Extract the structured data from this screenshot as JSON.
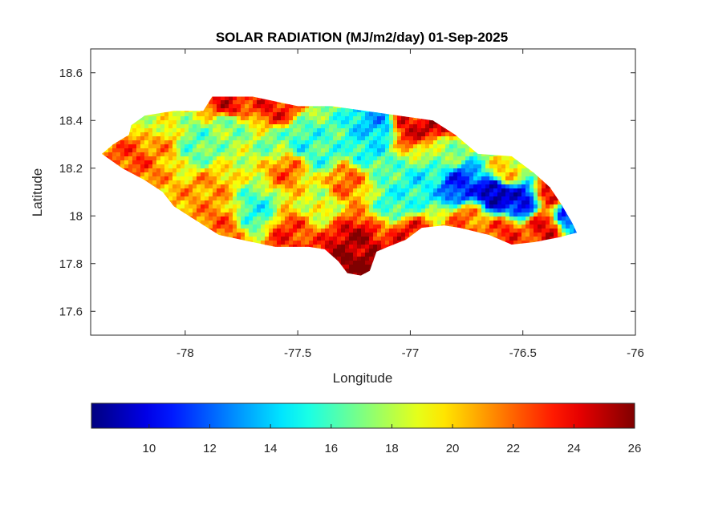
{
  "chart_data": {
    "type": "heatmap",
    "title": "SOLAR RADIATION (MJ/m2/day) 01-Sep-2025",
    "xlabel": "Longitude",
    "ylabel": "Latitude",
    "xlim": [
      -78.42,
      -76.0
    ],
    "ylim": [
      17.5,
      18.7
    ],
    "x_ticks": [
      -78,
      -77.5,
      -77,
      -76.5,
      -76
    ],
    "x_tick_labels": [
      "-78",
      "-77.5",
      "-77",
      "-76.5",
      "-76"
    ],
    "y_ticks": [
      17.6,
      17.8,
      18,
      18.2,
      18.4,
      18.6
    ],
    "y_tick_labels": [
      "17.6",
      "17.8",
      "18",
      "18.2",
      "18.4",
      "18.6"
    ],
    "colormap": "jet",
    "color_range": [
      8.1,
      26
    ],
    "colorbar_ticks": [
      10,
      12,
      14,
      16,
      18,
      20,
      22,
      24,
      26
    ],
    "colorbar_tick_labels": [
      "10",
      "12",
      "14",
      "16",
      "18",
      "20",
      "22",
      "24",
      "26"
    ],
    "colorbar_position": "bottom",
    "grid": false,
    "region_outline": [
      [
        -78.37,
        18.26
      ],
      [
        -78.32,
        18.3
      ],
      [
        -78.25,
        18.34
      ],
      [
        -78.24,
        18.38
      ],
      [
        -78.18,
        18.42
      ],
      [
        -78.05,
        18.44
      ],
      [
        -77.92,
        18.44
      ],
      [
        -77.88,
        18.5
      ],
      [
        -77.7,
        18.5
      ],
      [
        -77.5,
        18.46
      ],
      [
        -77.35,
        18.46
      ],
      [
        -77.2,
        18.44
      ],
      [
        -77.05,
        18.42
      ],
      [
        -76.9,
        18.4
      ],
      [
        -76.8,
        18.34
      ],
      [
        -76.7,
        18.26
      ],
      [
        -76.55,
        18.25
      ],
      [
        -76.45,
        18.18
      ],
      [
        -76.38,
        18.12
      ],
      [
        -76.33,
        18.05
      ],
      [
        -76.28,
        17.97
      ],
      [
        -76.26,
        17.93
      ],
      [
        -76.34,
        17.91
      ],
      [
        -76.45,
        17.89
      ],
      [
        -76.55,
        17.88
      ],
      [
        -76.65,
        17.92
      ],
      [
        -76.78,
        17.95
      ],
      [
        -76.85,
        17.96
      ],
      [
        -76.95,
        17.95
      ],
      [
        -77.02,
        17.9
      ],
      [
        -77.1,
        17.87
      ],
      [
        -77.15,
        17.85
      ],
      [
        -77.18,
        17.77
      ],
      [
        -77.22,
        17.75
      ],
      [
        -77.28,
        17.76
      ],
      [
        -77.32,
        17.81
      ],
      [
        -77.38,
        17.86
      ],
      [
        -77.45,
        17.87
      ],
      [
        -77.6,
        17.87
      ],
      [
        -77.75,
        17.9
      ],
      [
        -77.85,
        17.92
      ],
      [
        -77.95,
        17.98
      ],
      [
        -78.05,
        18.04
      ],
      [
        -78.1,
        18.1
      ],
      [
        -78.18,
        18.15
      ],
      [
        -78.28,
        18.2
      ],
      [
        -78.37,
        18.26
      ]
    ],
    "field_centers": [
      {
        "lon": -76.62,
        "lat": 18.1,
        "value": 8.5
      },
      {
        "lon": -76.78,
        "lat": 18.12,
        "value": 11
      },
      {
        "lon": -76.52,
        "lat": 18.06,
        "value": 10
      },
      {
        "lon": -76.3,
        "lat": 18.01,
        "value": 11
      },
      {
        "lon": -76.95,
        "lat": 18.13,
        "value": 15
      },
      {
        "lon": -77.05,
        "lat": 18.06,
        "value": 15.5
      },
      {
        "lon": -77.48,
        "lat": 18.31,
        "value": 15.5
      },
      {
        "lon": -77.38,
        "lat": 18.25,
        "value": 16
      },
      {
        "lon": -77.2,
        "lat": 18.29,
        "value": 15
      },
      {
        "lon": -77.15,
        "lat": 18.38,
        "value": 13.5
      },
      {
        "lon": -77.68,
        "lat": 18.02,
        "value": 15.5
      },
      {
        "lon": -77.95,
        "lat": 18.3,
        "value": 16.5
      },
      {
        "lon": -77.8,
        "lat": 18.38,
        "value": 17
      },
      {
        "lon": -77.6,
        "lat": 18.3,
        "value": 17
      },
      {
        "lon": -78.15,
        "lat": 18.38,
        "value": 18.5
      },
      {
        "lon": -77.4,
        "lat": 18.06,
        "value": 18.5
      },
      {
        "lon": -76.85,
        "lat": 18.28,
        "value": 17.5
      },
      {
        "lon": -78.12,
        "lat": 18.3,
        "value": 21
      },
      {
        "lon": -78.22,
        "lat": 18.25,
        "value": 22.5
      },
      {
        "lon": -77.6,
        "lat": 18.45,
        "value": 23.5
      },
      {
        "lon": -77.8,
        "lat": 18.46,
        "value": 24
      },
      {
        "lon": -77.55,
        "lat": 18.2,
        "value": 22
      },
      {
        "lon": -77.9,
        "lat": 18.1,
        "value": 21
      },
      {
        "lon": -77.3,
        "lat": 18.15,
        "value": 22
      },
      {
        "lon": -77.55,
        "lat": 17.92,
        "value": 23
      },
      {
        "lon": -77.85,
        "lat": 17.95,
        "value": 22
      },
      {
        "lon": -77.25,
        "lat": 17.88,
        "value": 25
      },
      {
        "lon": -77.25,
        "lat": 17.8,
        "value": 26
      },
      {
        "lon": -77.0,
        "lat": 17.92,
        "value": 23.5
      },
      {
        "lon": -77.0,
        "lat": 18.38,
        "value": 24
      },
      {
        "lon": -76.88,
        "lat": 18.38,
        "value": 25
      },
      {
        "lon": -76.75,
        "lat": 17.98,
        "value": 22
      },
      {
        "lon": -76.4,
        "lat": 17.95,
        "value": 24
      },
      {
        "lon": -76.35,
        "lat": 18.1,
        "value": 25
      },
      {
        "lon": -76.58,
        "lat": 17.93,
        "value": 23
      },
      {
        "lon": -76.58,
        "lat": 18.18,
        "value": 20
      }
    ]
  }
}
